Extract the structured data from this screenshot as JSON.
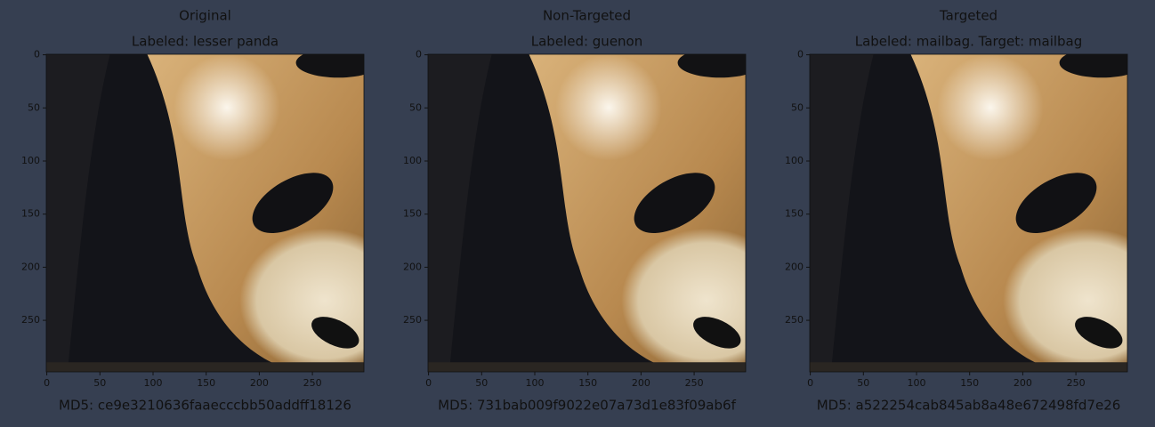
{
  "chart_data": [
    {
      "type": "image",
      "title": "Original",
      "subtitle": "Labeled: lesser panda",
      "xlabel": "MD5: ce9e3210636faaecccbb50addff18126",
      "xlim": [
        -0.5,
        298.5
      ],
      "ylim": [
        298.5,
        -0.5
      ],
      "xticks": [
        0,
        50,
        100,
        150,
        200,
        250
      ],
      "yticks": [
        0,
        50,
        100,
        150,
        200,
        250
      ]
    },
    {
      "type": "image",
      "title": "Non-Targeted",
      "subtitle": "Labeled: guenon",
      "xlabel": "MD5: 731bab009f9022e07a73d1e83f09ab6f",
      "xlim": [
        -0.5,
        298.5
      ],
      "ylim": [
        298.5,
        -0.5
      ],
      "xticks": [
        0,
        50,
        100,
        150,
        200,
        250
      ],
      "yticks": [
        0,
        50,
        100,
        150,
        200,
        250
      ]
    },
    {
      "type": "image",
      "title": "Targeted",
      "subtitle": "Labeled: mailbag. Target: mailbag",
      "xlabel": "MD5: a522254cab845ab8a48e672498fd7e26",
      "xlim": [
        -0.5,
        298.5
      ],
      "ylim": [
        298.5,
        -0.5
      ],
      "xticks": [
        0,
        50,
        100,
        150,
        200,
        250
      ],
      "yticks": [
        0,
        50,
        100,
        150,
        200,
        250
      ]
    }
  ]
}
